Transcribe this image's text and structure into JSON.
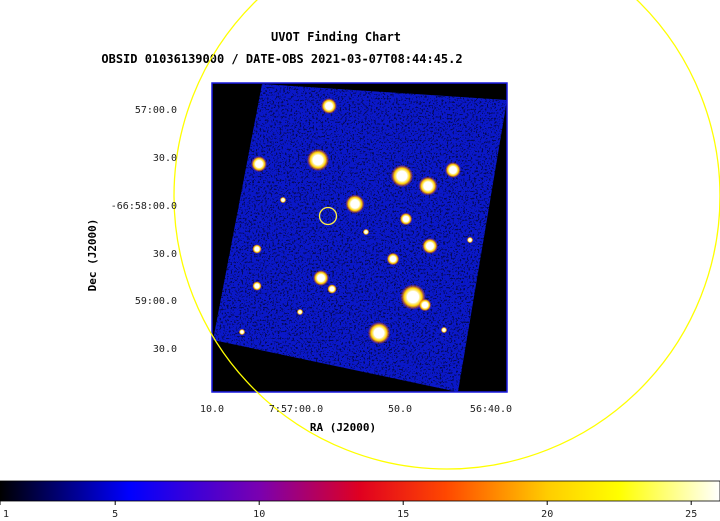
{
  "chart_data": {
    "type": "heatmap",
    "title": "UVOT Finding Chart",
    "subtitle": "OBSID 01036139000 / DATE-OBS 2021-03-07T08:44:45.2",
    "xlabel": "RA (J2000)",
    "ylabel": "Dec (J2000)",
    "x_ticks": [
      "10.0",
      "7:57:00.0",
      "50.0",
      "56:40.0"
    ],
    "y_ticks": [
      "57:00.0",
      "30.0",
      "-66:58:00.0",
      "30.0",
      "59:00.0",
      "30.0"
    ],
    "colorbar": {
      "ticks": [
        1,
        5,
        10,
        15,
        20,
        25
      ],
      "range": [
        1,
        26
      ],
      "colors": [
        "#000000",
        "#0000ff",
        "#ff0000",
        "#ffff00",
        "#ffffff"
      ]
    },
    "grid": false,
    "background_color": "#0a1ad0",
    "frame_color": "#1a1ae0",
    "circle_color": "#ffff00",
    "target_marker": "yellow circle at image center"
  }
}
